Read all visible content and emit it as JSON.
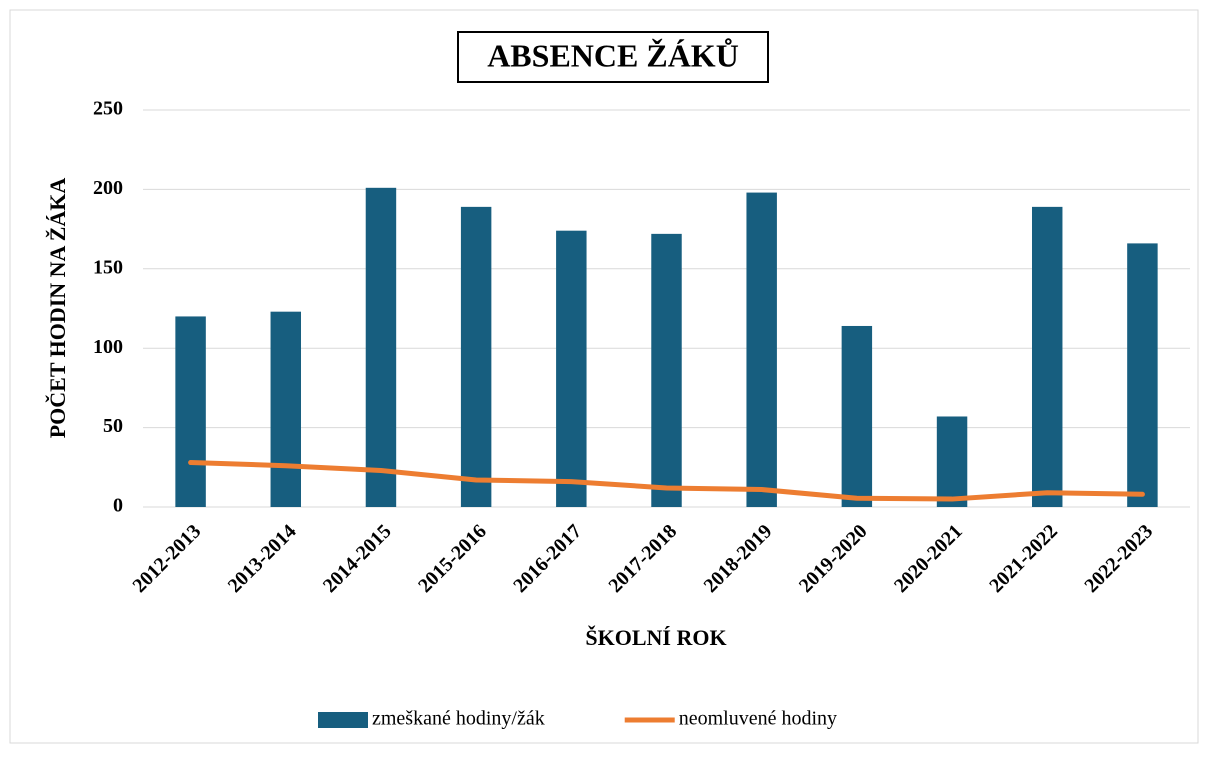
{
  "chart_data": {
    "type": "bar",
    "title": "ABSENCE ŽÁKŮ",
    "x_label": "ŠKOLNÍ ROK",
    "y_label": "POČET HODIN NA ŽÁKA",
    "categories": [
      "2012-2013",
      "2013-2014",
      "2014-2015",
      "2015-2016",
      "2016-2017",
      "2017-2018",
      "2018-2019",
      "2019-2020",
      "2020-2021",
      "2021-2022",
      "2022-2023"
    ],
    "series": [
      {
        "name": "zmeškané hodiny/žák",
        "type": "bar",
        "color": "#175e7f",
        "values": [
          120,
          123,
          201,
          189,
          174,
          172,
          198,
          114,
          57,
          189,
          166
        ]
      },
      {
        "name": "neomluvené hodiny",
        "type": "line",
        "color": "#ed7d31",
        "values": [
          28,
          26,
          23,
          17,
          16,
          12,
          11,
          5.5,
          5,
          9,
          8
        ]
      }
    ],
    "ylim": [
      0,
      250
    ],
    "yticks": [
      0,
      50,
      100,
      150,
      200,
      250
    ],
    "grid": true,
    "legend": "bottom"
  }
}
